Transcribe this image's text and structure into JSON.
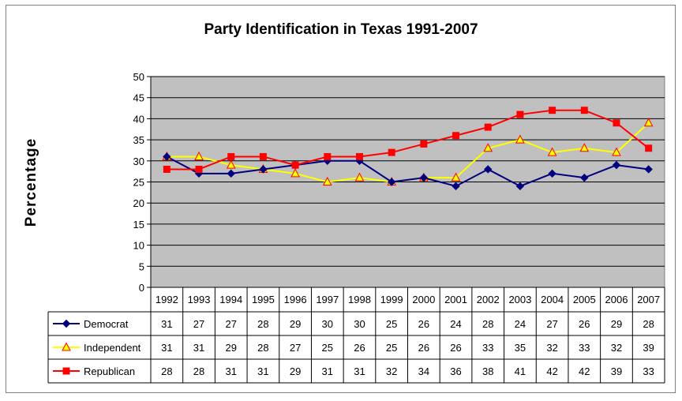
{
  "chart_data": {
    "type": "line",
    "title": "Party Identification in Texas 1991-2007",
    "ylabel": "Percentage",
    "xlabel": "",
    "ylim": [
      0,
      50
    ],
    "yticks": [
      0,
      5,
      10,
      15,
      20,
      25,
      30,
      35,
      40,
      45,
      50
    ],
    "categories": [
      "1992",
      "1993",
      "1994",
      "1995",
      "1996",
      "1997",
      "1998",
      "1999",
      "2000",
      "2001",
      "2002",
      "2003",
      "2004",
      "2005",
      "2006",
      "2007"
    ],
    "grid": true,
    "legend": "data-table",
    "series": [
      {
        "name": "Democrat",
        "color": "#000080",
        "marker": "diamond",
        "values": [
          31,
          27,
          27,
          28,
          29,
          30,
          30,
          25,
          26,
          24,
          28,
          24,
          27,
          26,
          29,
          28
        ]
      },
      {
        "name": "Independent",
        "color": "#FFFF00",
        "marker": "triangle",
        "values": [
          31,
          31,
          29,
          28,
          27,
          25,
          26,
          25,
          26,
          26,
          33,
          35,
          32,
          33,
          32,
          39
        ]
      },
      {
        "name": "Republican",
        "color": "#FF0000",
        "marker": "square",
        "values": [
          28,
          28,
          31,
          31,
          29,
          31,
          31,
          32,
          34,
          36,
          38,
          41,
          42,
          42,
          39,
          33
        ]
      }
    ]
  }
}
